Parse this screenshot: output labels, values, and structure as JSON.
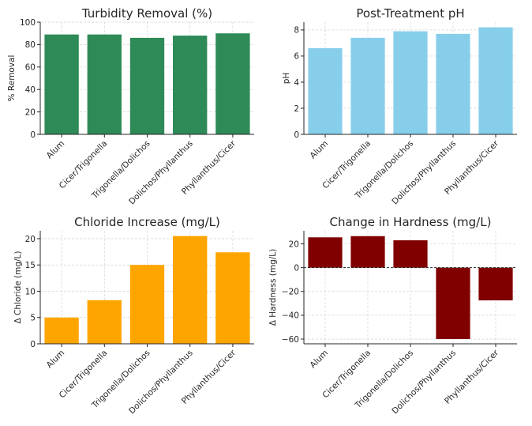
{
  "chart_data": [
    {
      "type": "bar",
      "title": "Turbidity Removal (%)",
      "ylabel": "% Removal",
      "xlabel": "",
      "categories": [
        "Alum",
        "Cicer/Trigonella",
        "Trigonella/Dolichos",
        "Dolichos/Phyllanthus",
        "Phyllanthus/Cicer"
      ],
      "values": [
        89,
        89,
        86,
        88,
        90
      ],
      "ylim": [
        0,
        100
      ],
      "yticks": [
        0,
        20,
        40,
        60,
        80,
        100
      ],
      "color": "#2e8b57",
      "grid": true,
      "zero_line": false
    },
    {
      "type": "bar",
      "title": "Post-Treatment pH",
      "ylabel": "pH",
      "xlabel": "",
      "categories": [
        "Alum",
        "Cicer/Trigonella",
        "Trigonella/Dolichos",
        "Dolichos/Phyllanthus",
        "Phyllanthus/Cicer"
      ],
      "values": [
        6.6,
        7.4,
        7.9,
        7.7,
        8.2
      ],
      "ylim": [
        0,
        8.6
      ],
      "yticks": [
        0,
        2,
        4,
        6,
        8
      ],
      "color": "#87ceeb",
      "grid": true,
      "zero_line": false
    },
    {
      "type": "bar",
      "title": "Chloride Increase (mg/L)",
      "ylabel": "Δ Chloride (mg/L)",
      "xlabel": "",
      "categories": [
        "Alum",
        "Cicer/Trigonella",
        "Trigonella/Dolichos",
        "Dolichos/Phyllanthus",
        "Phyllanthus/Cicer"
      ],
      "values": [
        5,
        8.3,
        15,
        20.5,
        17.4
      ],
      "ylim": [
        0,
        21.5
      ],
      "yticks": [
        0,
        5,
        10,
        15,
        20
      ],
      "color": "#ffa500",
      "grid": true,
      "zero_line": false
    },
    {
      "type": "bar",
      "title": "Change in Hardness (mg/L)",
      "ylabel": "Δ Hardness (mg/L)",
      "xlabel": "",
      "categories": [
        "Alum",
        "Cicer/Trigonella",
        "Trigonella/Dolichos",
        "Dolichos/Phyllanthus",
        "Phyllanthus/Cicer"
      ],
      "values": [
        25.5,
        26.5,
        23,
        -60,
        -27.5
      ],
      "ylim": [
        -64,
        31
      ],
      "yticks": [
        -60,
        -40,
        -20,
        0,
        20
      ],
      "color": "#800000",
      "grid": true,
      "zero_line": true
    }
  ]
}
